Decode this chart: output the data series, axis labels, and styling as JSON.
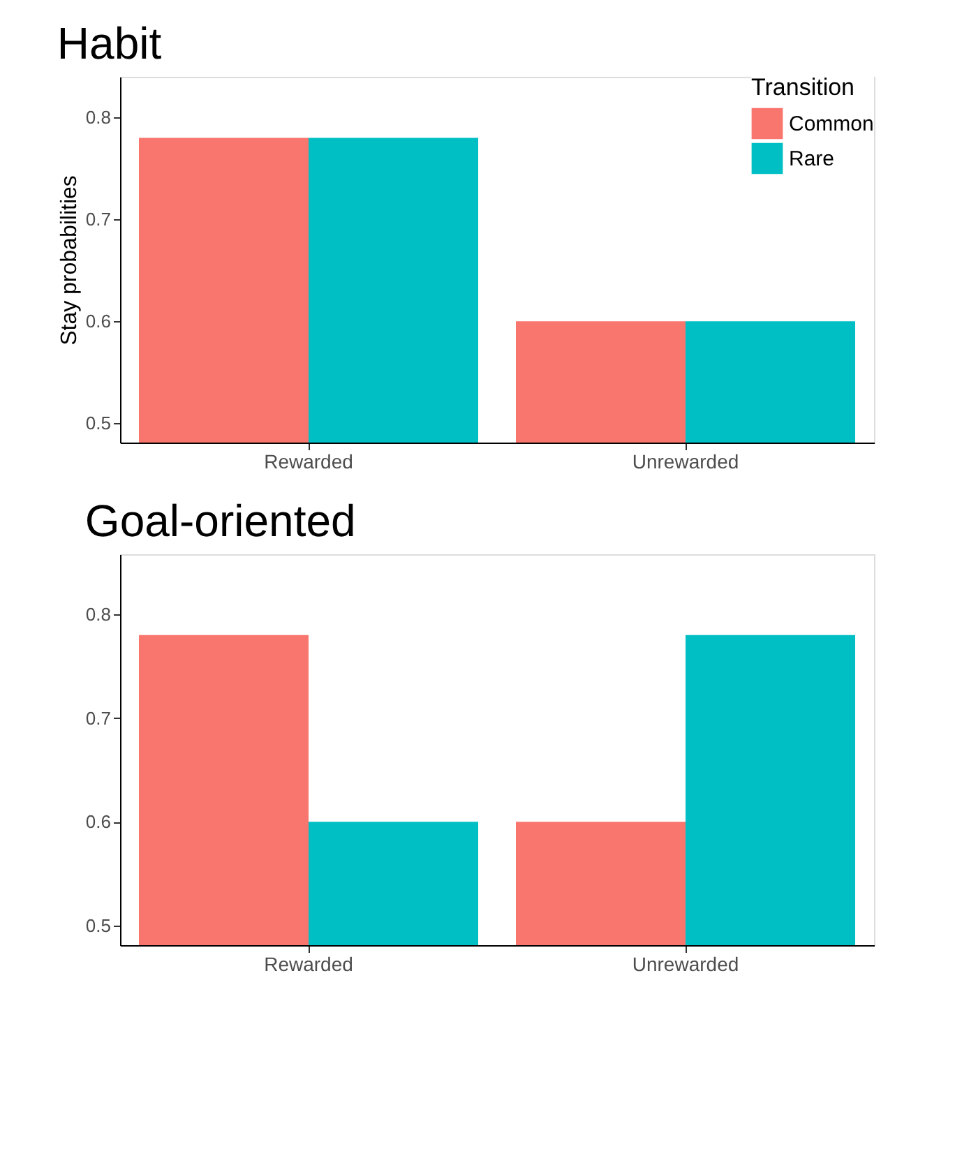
{
  "chart_data": [
    {
      "type": "bar",
      "title": "Habit",
      "ylabel": "Stay probabilities",
      "legend_title": "Transition",
      "legend": "top right",
      "grid": false,
      "categories": [
        "Rewarded",
        "Unrewarded"
      ],
      "ylim": [
        0.481,
        0.84
      ],
      "yticks": [
        0.5,
        0.6,
        0.7,
        0.8
      ],
      "series": [
        {
          "name": "Common",
          "color": "#f8766d",
          "values": [
            0.78,
            0.6
          ]
        },
        {
          "name": "Rare",
          "color": "#00bfc4",
          "values": [
            0.78,
            0.6
          ]
        }
      ]
    },
    {
      "type": "bar",
      "title": "Goal-oriented",
      "legend": false,
      "grid": false,
      "categories": [
        "Rewarded",
        "Unrewarded"
      ],
      "ylim": [
        0.481,
        0.858
      ],
      "yticks": [
        0.5,
        0.6,
        0.7,
        0.8
      ],
      "series": [
        {
          "name": "Common",
          "color": "#f8766d",
          "values": [
            0.78,
            0.6
          ]
        },
        {
          "name": "Rare",
          "color": "#00bfc4",
          "values": [
            0.6,
            0.78
          ]
        }
      ]
    }
  ]
}
